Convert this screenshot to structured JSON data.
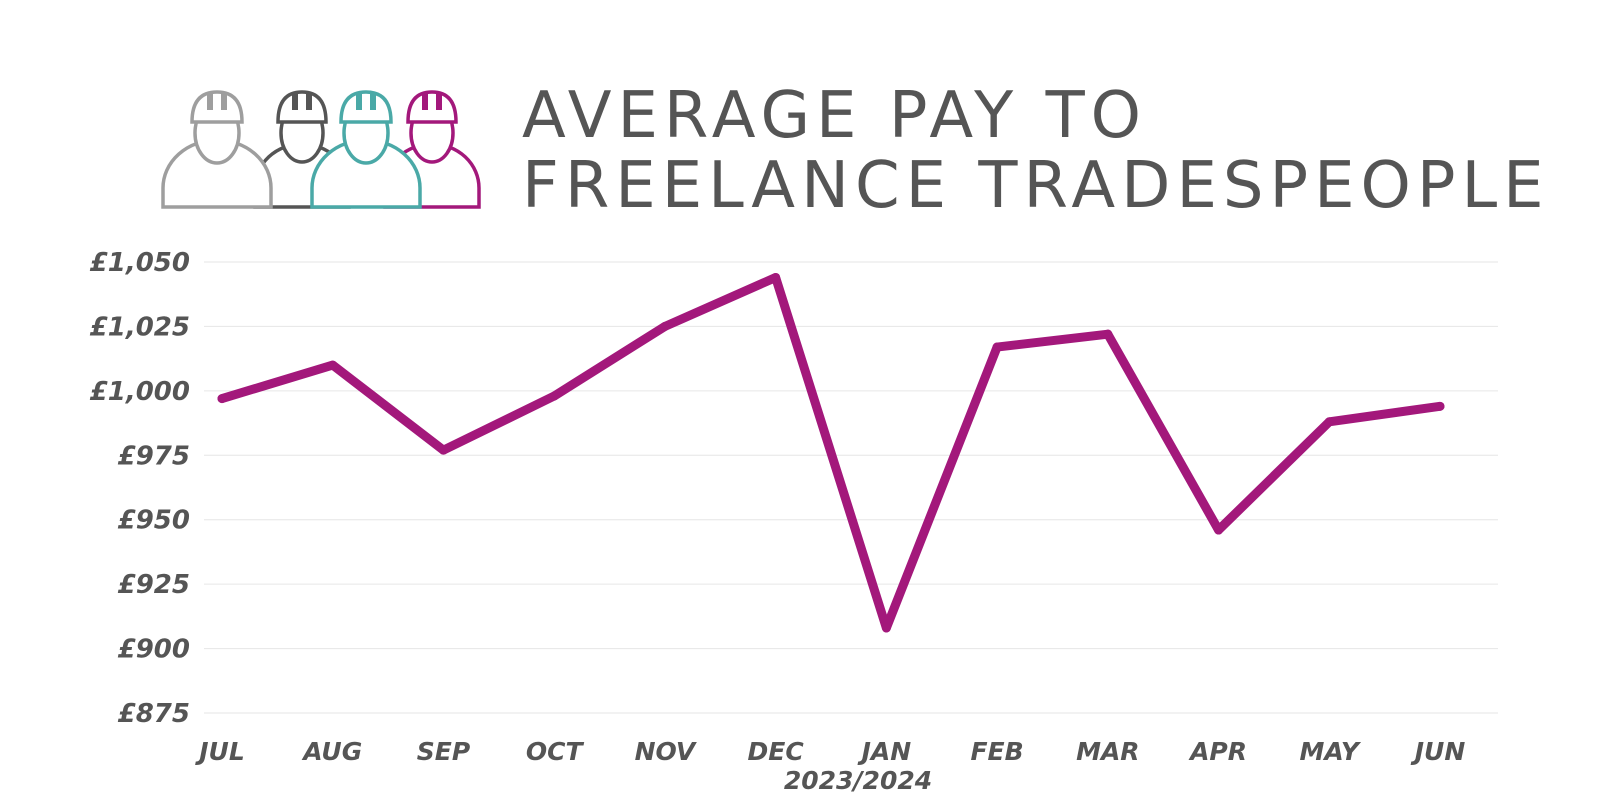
{
  "title_lines": [
    "AVERAGE PAY TO",
    "FREELANCE TRADESPEOPLE"
  ],
  "logo": {
    "icon": "hard-hat-workers-icon",
    "colors": [
      "#9e9e9e",
      "#555555",
      "#4aa9a7",
      "#a3187b"
    ]
  },
  "colors": {
    "line": "#a3187b",
    "text": "#555555",
    "grid": "#e6e6e6"
  },
  "chart_data": {
    "type": "line",
    "title": "AVERAGE PAY TO FREELANCE TRADESPEOPLE",
    "xlabel": "2023/2024",
    "ylabel": "",
    "categories": [
      "JUL",
      "AUG",
      "SEP",
      "OCT",
      "NOV",
      "DEC",
      "JAN",
      "FEB",
      "MAR",
      "APR",
      "MAY",
      "JUN"
    ],
    "series": [
      {
        "values": [
          997,
          1010,
          977,
          998,
          1025,
          1044,
          908,
          1017,
          1022,
          946,
          988,
          994
        ]
      }
    ],
    "ylim": [
      875,
      1050
    ],
    "yticks": [
      1050,
      1025,
      1000,
      975,
      950,
      925,
      900,
      875
    ],
    "ytick_labels": [
      "£1,050",
      "£1,025",
      "£1,000",
      "£975",
      "£950",
      "£925",
      "£900",
      "£875"
    ],
    "grid": true,
    "legend": "none"
  }
}
